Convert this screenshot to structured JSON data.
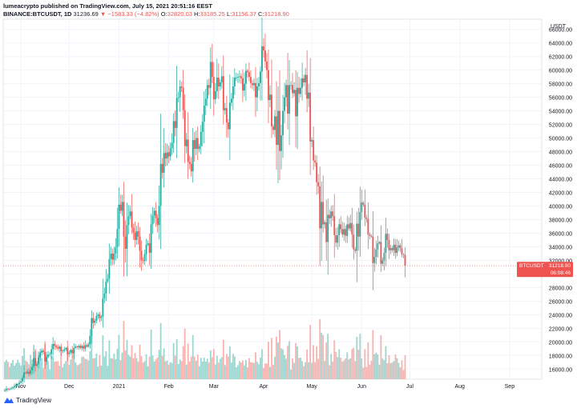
{
  "header": {
    "publisher_line": "lumeacrypto published on TradingView.com, July 15, 2021 20:51:16 EEST",
    "symbol": "BINANCE:BTCUSDT, 1D",
    "last": "31236.69",
    "change": "▼ −1583.33 (−4.82%)",
    "o_label": "O:",
    "o": "32820.03",
    "h_label": "H:",
    "h": "33185.25",
    "l_label": "L:",
    "l": "31156.37",
    "c_label": "C:",
    "c": "31218.90"
  },
  "price_tag": {
    "symbol": "BTCUSDT",
    "price": "31218.90",
    "countdown": "06:08:46"
  },
  "footer": {
    "brand": "TradingView"
  },
  "colors": {
    "up": "#26a69a",
    "down": "#ef5350",
    "up_vol": "#9fd5cf",
    "down_vol": "#f8b2b0",
    "grid": "#f0f3fa",
    "text": "#131722"
  },
  "chart_data": {
    "type": "candlestick",
    "currency_label": "USDT",
    "y_ticks": [
      16000,
      18000,
      20000,
      22000,
      24000,
      26000,
      28000,
      30000,
      32000,
      34000,
      36000,
      38000,
      40000,
      42000,
      44000,
      46000,
      48000,
      50000,
      52000,
      54000,
      56000,
      58000,
      60000,
      62000,
      64000,
      66000
    ],
    "y_tick_labels": [
      "16000.00",
      "18000.00",
      "20000.00",
      "22000.00",
      "24000.00",
      "26000.00",
      "28000.00",
      "30000.00",
      "32000.00",
      "34000.00",
      "36000.00",
      "38000.00",
      "40000.00",
      "42000.00",
      "44000.00",
      "46000.00",
      "48000.00",
      "50000.00",
      "52000.00",
      "54000.00",
      "56000.00",
      "58000.00",
      "60000.00",
      "62000.00",
      "64000.00",
      "66000.00"
    ],
    "ylim": [
      14500,
      67500
    ],
    "x_labels": [
      "Nov",
      "Dec",
      "2021",
      "Feb",
      "Mar",
      "Apr",
      "May",
      "Jun",
      "Jul",
      "Aug",
      "Sep"
    ],
    "x_label_dates": [
      "2020-11-01",
      "2020-12-01",
      "2021-01-01",
      "2021-02-01",
      "2021-03-01",
      "2021-04-01",
      "2021-05-01",
      "2021-06-01",
      "2021-07-01",
      "2021-08-01",
      "2021-09-01"
    ],
    "x_range": [
      "2020-10-21",
      "2021-09-21"
    ],
    "first_date": "2020-10-22",
    "close": [
      12900,
      13100,
      13000,
      13050,
      13150,
      13300,
      13500,
      13700,
      13800,
      14000,
      14200,
      14700,
      15500,
      15400,
      15600,
      15300,
      15800,
      16300,
      17600,
      16500,
      16700,
      17700,
      18400,
      18700,
      18500,
      17100,
      17800,
      18100,
      18200,
      18900,
      19700,
      19400,
      19200,
      19000,
      19300,
      18600,
      18700,
      18900,
      19100,
      18200,
      18400,
      18800,
      18300,
      19100,
      19300,
      19200,
      19400,
      19100,
      19400,
      19000,
      19500,
      19300,
      19600,
      20900,
      23500,
      22800,
      23100,
      23800,
      24000,
      23500,
      23700,
      26400,
      27100,
      28900,
      29300,
      32200,
      33000,
      32100,
      33000,
      33900,
      36600,
      40200,
      39300,
      40600,
      35500,
      33700,
      37200,
      38500,
      39200,
      36800,
      36100,
      35000,
      36300,
      35500,
      33400,
      32000,
      31900,
      32900,
      34300,
      34500,
      33100,
      37300,
      38600,
      39300,
      38200,
      37200,
      40000,
      46200,
      44900,
      47800,
      47000,
      47900,
      47300,
      48500,
      49300,
      52500,
      51500,
      55900,
      56000,
      57600,
      57400,
      54100,
      48800,
      49800,
      46500,
      46200,
      45100,
      49700,
      48400,
      50000,
      48400,
      48800,
      50900,
      52400,
      54800,
      55800,
      57800,
      57400,
      61200,
      59000,
      55700,
      56900,
      58900,
      57600,
      58200,
      59100,
      54100,
      54400,
      52300,
      51300,
      55200,
      55800,
      57600,
      58900,
      58900,
      59000,
      59100,
      58800,
      57000,
      58000,
      59900,
      59700,
      59000,
      58100,
      57800,
      58100,
      56000,
      57600,
      58100,
      59800,
      63500,
      62900,
      61300,
      60000,
      55600,
      56400,
      51700,
      51200,
      53200,
      49000,
      54000,
      48100,
      50400,
      54000,
      56000,
      57800,
      53600,
      57800,
      57800,
      56600,
      57100,
      53200,
      57400,
      56500,
      57400,
      58800,
      58200,
      59300,
      55800,
      56700,
      49500,
      49700,
      46700,
      46400,
      43500,
      42900,
      36700,
      40600,
      37300,
      37600,
      34700,
      38700,
      38200,
      39200,
      38500,
      35700,
      34600,
      35700,
      37300,
      36600,
      35800,
      36600,
      35600,
      37300,
      36700,
      37500,
      35800,
      33600,
      33400,
      37400,
      35500,
      39100,
      40500,
      40200,
      38300,
      38100,
      35800,
      35600,
      35500,
      31600,
      32500,
      33600,
      34500,
      34700,
      31500,
      32000,
      33100,
      35900,
      35000,
      33500,
      33800,
      33500,
      34300,
      33100,
      33900,
      34200,
      33800,
      32900,
      32800,
      31200
    ],
    "volume_axis_max": 300000
  }
}
